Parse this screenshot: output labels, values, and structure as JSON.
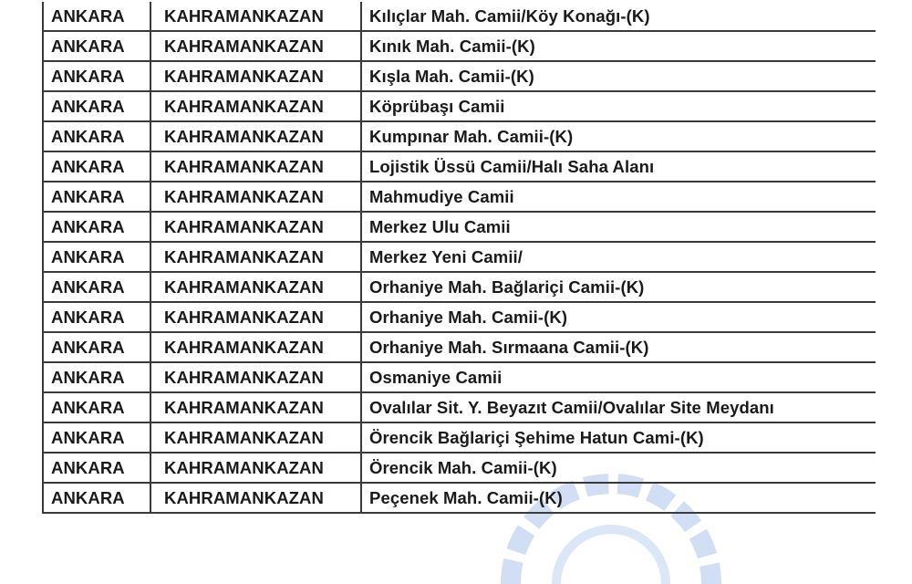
{
  "watermark_color": "#4a78c8",
  "rows": [
    {
      "city": "ANKARA",
      "district": "KAHRAMANKAZAN",
      "place": "Kılıçlar Mah. Camii/Köy Konağı-(K)"
    },
    {
      "city": "ANKARA",
      "district": "KAHRAMANKAZAN",
      "place": "Kınık Mah. Camii-(K)"
    },
    {
      "city": "ANKARA",
      "district": "KAHRAMANKAZAN",
      "place": "Kışla Mah. Camii-(K)"
    },
    {
      "city": "ANKARA",
      "district": "KAHRAMANKAZAN",
      "place": "Köprübaşı Camii"
    },
    {
      "city": "ANKARA",
      "district": "KAHRAMANKAZAN",
      "place": "Kumpınar Mah. Camii-(K)"
    },
    {
      "city": "ANKARA",
      "district": "KAHRAMANKAZAN",
      "place": "Lojistik Üssü Camii/Halı Saha Alanı"
    },
    {
      "city": "ANKARA",
      "district": "KAHRAMANKAZAN",
      "place": "Mahmudiye Camii"
    },
    {
      "city": "ANKARA",
      "district": "KAHRAMANKAZAN",
      "place": "Merkez Ulu Camii"
    },
    {
      "city": "ANKARA",
      "district": "KAHRAMANKAZAN",
      "place": "Merkez Yeni Camii/"
    },
    {
      "city": "ANKARA",
      "district": "KAHRAMANKAZAN",
      "place": "Orhaniye Mah. Bağlariçi Camii-(K)"
    },
    {
      "city": "ANKARA",
      "district": "KAHRAMANKAZAN",
      "place": "Orhaniye Mah. Camii-(K)"
    },
    {
      "city": "ANKARA",
      "district": "KAHRAMANKAZAN",
      "place": "Orhaniye Mah. Sırmaana Camii-(K)"
    },
    {
      "city": "ANKARA",
      "district": "KAHRAMANKAZAN",
      "place": "Osmaniye Camii"
    },
    {
      "city": "ANKARA",
      "district": "KAHRAMANKAZAN",
      "place": "Ovalılar Sit. Y. Beyazıt Camii/Ovalılar Site Meydanı"
    },
    {
      "city": "ANKARA",
      "district": "KAHRAMANKAZAN",
      "place": "Örencik Bağlariçi Şehime Hatun Cami-(K)"
    },
    {
      "city": "ANKARA",
      "district": "KAHRAMANKAZAN",
      "place": "Örencik Mah. Camii-(K)"
    },
    {
      "city": "ANKARA",
      "district": "KAHRAMANKAZAN",
      "place": "Peçenek Mah. Camii-(K)"
    }
  ]
}
